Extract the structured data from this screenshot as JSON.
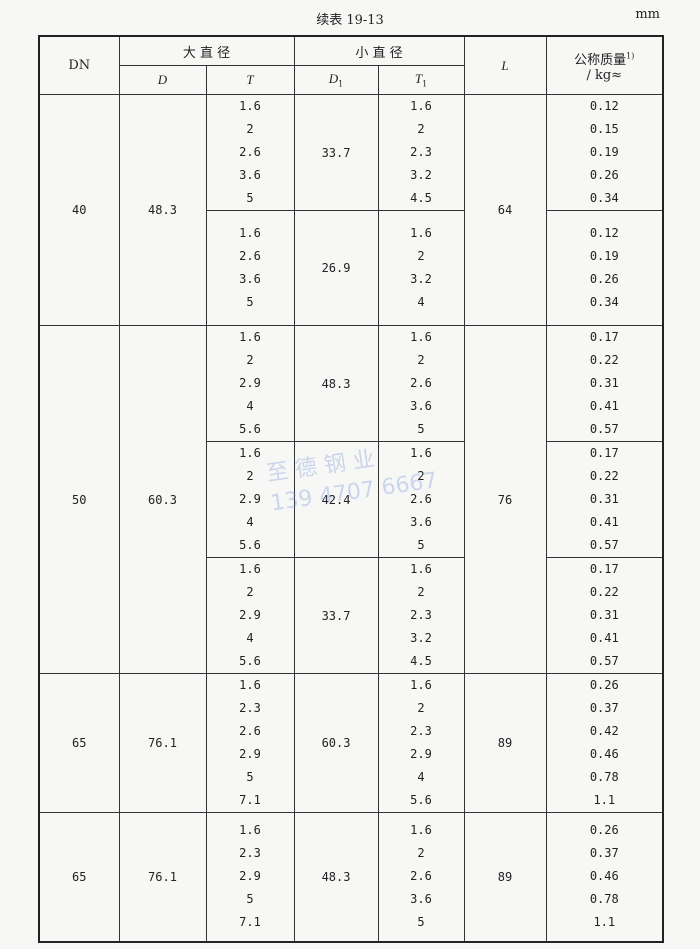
{
  "caption": "续表 19-13",
  "unit": "mm",
  "headers": {
    "dn": "DN",
    "large": "大 直 径",
    "small": "小 直 径",
    "d": "D",
    "t": "T",
    "d1": "D",
    "d1_sub": "1",
    "t1": "T",
    "t1_sub": "1",
    "l": "L",
    "mass": "公称质量",
    "mass_sup": "1)",
    "mass_unit": "/ kg≈"
  },
  "watermark": {
    "line1": "至 德 钢 业",
    "line2": "139 4707 6667"
  },
  "groups": [
    {
      "dn": "40",
      "d": "48.3",
      "l": "64",
      "subs": [
        {
          "t": [
            "1.6",
            "2",
            "2.6",
            "3.6",
            "5"
          ],
          "d1": "33.7",
          "t1": [
            "1.6",
            "2",
            "2.3",
            "3.2",
            "4.5"
          ],
          "mass": [
            "0.12",
            "0.15",
            "0.19",
            "0.26",
            "0.34"
          ]
        },
        {
          "t": [
            "1.6",
            "2.6",
            "3.6",
            "5"
          ],
          "d1": "26.9",
          "t1": [
            "1.6",
            "2",
            "3.2",
            "4"
          ],
          "mass": [
            "0.12",
            "0.19",
            "0.26",
            "0.34"
          ]
        }
      ]
    },
    {
      "dn": "50",
      "d": "60.3",
      "l": "76",
      "subs": [
        {
          "t": [
            "1.6",
            "2",
            "2.9",
            "4",
            "5.6"
          ],
          "d1": "48.3",
          "t1": [
            "1.6",
            "2",
            "2.6",
            "3.6",
            "5"
          ],
          "mass": [
            "0.17",
            "0.22",
            "0.31",
            "0.41",
            "0.57"
          ]
        },
        {
          "t": [
            "1.6",
            "2",
            "2.9",
            "4",
            "5.6"
          ],
          "d1": "42.4",
          "t1": [
            "1.6",
            "2",
            "2.6",
            "3.6",
            "5"
          ],
          "mass": [
            "0.17",
            "0.22",
            "0.31",
            "0.41",
            "0.57"
          ]
        },
        {
          "t": [
            "1.6",
            "2",
            "2.9",
            "4",
            "5.6"
          ],
          "d1": "33.7",
          "t1": [
            "1.6",
            "2",
            "2.3",
            "3.2",
            "4.5"
          ],
          "mass": [
            "0.17",
            "0.22",
            "0.31",
            "0.41",
            "0.57"
          ]
        }
      ]
    },
    {
      "dn": "65",
      "d": "76.1",
      "l": "89",
      "subs": [
        {
          "t": [
            "1.6",
            "2.3",
            "2.6",
            "2.9",
            "5",
            "7.1"
          ],
          "d1": "60.3",
          "t1": [
            "1.6",
            "2",
            "2.3",
            "2.9",
            "4",
            "5.6"
          ],
          "mass": [
            "0.26",
            "0.37",
            "0.42",
            "0.46",
            "0.78",
            "1.1"
          ]
        }
      ]
    },
    {
      "dn": "65",
      "d": "76.1",
      "l": "89",
      "subs": [
        {
          "t": [
            "1.6",
            "2.3",
            "2.9",
            "5",
            "7.1"
          ],
          "d1": "48.3",
          "t1": [
            "1.6",
            "2",
            "2.6",
            "3.6",
            "5"
          ],
          "mass": [
            "0.26",
            "0.37",
            "0.46",
            "0.78",
            "1.1"
          ]
        }
      ]
    }
  ]
}
